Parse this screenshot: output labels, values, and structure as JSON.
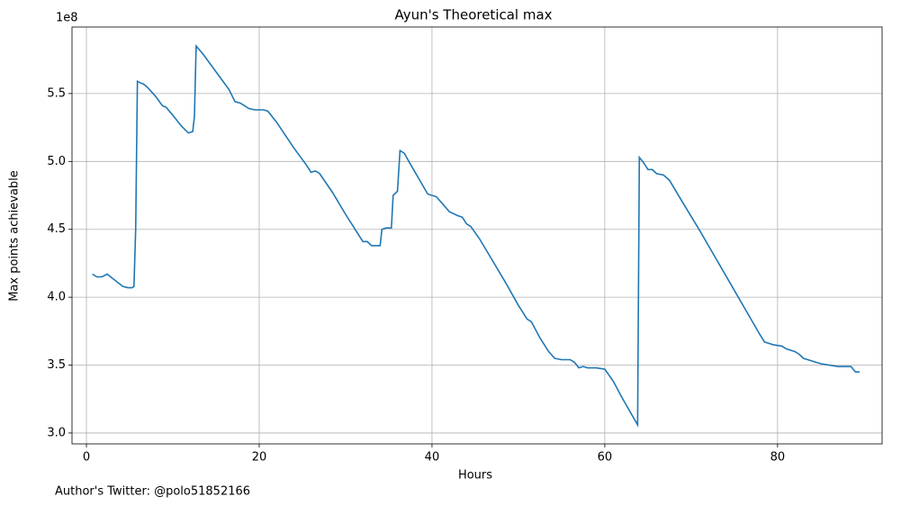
{
  "chart_data": {
    "type": "line",
    "title": "Ayun's Theoretical max",
    "x_label": "Hours",
    "y_label": "Max points achievable",
    "y_offset_label": "1e8",
    "footnote": "Author's Twitter: @polo51852166",
    "grid": true,
    "xlim": [
      -1.67,
      92.1
    ],
    "ylim": [
      2.92,
      5.99
    ],
    "xticks": [
      0,
      20,
      40,
      60,
      80
    ],
    "yticks": [
      {
        "value": 3,
        "label": "3.0"
      },
      {
        "value": 3.5,
        "label": "3.5"
      },
      {
        "value": 4,
        "label": "4.0"
      },
      {
        "value": 4.5,
        "label": "4.5"
      },
      {
        "value": 5,
        "label": "5.0"
      },
      {
        "value": 5.5,
        "label": "5.5"
      }
    ],
    "x": [
      0.7,
      1.2,
      1.8,
      2.4,
      3.0,
      3.6,
      4.2,
      4.8,
      5.3,
      5.5,
      5.7,
      5.9,
      6.2,
      6.6,
      7.0,
      8.0,
      8.8,
      9.2,
      10.0,
      11.0,
      11.8,
      12.3,
      12.5,
      12.7,
      13.5,
      15,
      16.5,
      17.2,
      17.8,
      18.3,
      18.8,
      19.5,
      20.5,
      21,
      22,
      24,
      25.5,
      26,
      26.5,
      27,
      28.5,
      30,
      32,
      32.5,
      33,
      33.5,
      34,
      34.2,
      34.7,
      35.3,
      35.5,
      36,
      36.3,
      36.8,
      37.5,
      38.5,
      39.5,
      40.5,
      41.2,
      42,
      43,
      43.5,
      44,
      44.5,
      45.5,
      47,
      48.5,
      50,
      50.5,
      51,
      51.5,
      52.5,
      53.5,
      54.2,
      55,
      56,
      56.5,
      57,
      57.5,
      58,
      58.5,
      59,
      60,
      61,
      62,
      63.8,
      64,
      64.5,
      65,
      65.5,
      66,
      66.8,
      67.5,
      69,
      71,
      73,
      75,
      77,
      78,
      78.5,
      79,
      79.5,
      80.5,
      81,
      82,
      82.5,
      83,
      84,
      85,
      86,
      87,
      88,
      88.5,
      89,
      89.5
    ],
    "series": [
      {
        "name": "Max points achievable",
        "color": "#1f77b4",
        "values": [
          4.17,
          4.15,
          4.15,
          4.17,
          4.14,
          4.11,
          4.08,
          4.07,
          4.07,
          4.08,
          4.5,
          5.59,
          5.58,
          5.57,
          5.55,
          5.48,
          5.41,
          5.4,
          5.34,
          5.26,
          5.21,
          5.22,
          5.33,
          5.85,
          5.79,
          5.66,
          5.53,
          5.44,
          5.43,
          5.41,
          5.39,
          5.38,
          5.38,
          5.37,
          5.29,
          5.1,
          4.97,
          4.92,
          4.93,
          4.91,
          4.77,
          4.61,
          4.41,
          4.41,
          4.38,
          4.38,
          4.38,
          4.5,
          4.51,
          4.51,
          4.75,
          4.78,
          5.08,
          5.06,
          4.98,
          4.87,
          4.76,
          4.74,
          4.69,
          4.63,
          4.6,
          4.59,
          4.54,
          4.52,
          4.43,
          4.27,
          4.11,
          3.94,
          3.89,
          3.84,
          3.82,
          3.7,
          3.6,
          3.55,
          3.54,
          3.54,
          3.52,
          3.48,
          3.49,
          3.48,
          3.48,
          3.48,
          3.47,
          3.38,
          3.26,
          3.06,
          5.03,
          4.99,
          4.94,
          4.94,
          4.91,
          4.9,
          4.86,
          4.7,
          4.49,
          4.27,
          4.05,
          3.83,
          3.72,
          3.67,
          3.66,
          3.65,
          3.64,
          3.62,
          3.6,
          3.58,
          3.55,
          3.53,
          3.51,
          3.5,
          3.49,
          3.49,
          3.49,
          3.45,
          3.45
        ]
      }
    ]
  }
}
